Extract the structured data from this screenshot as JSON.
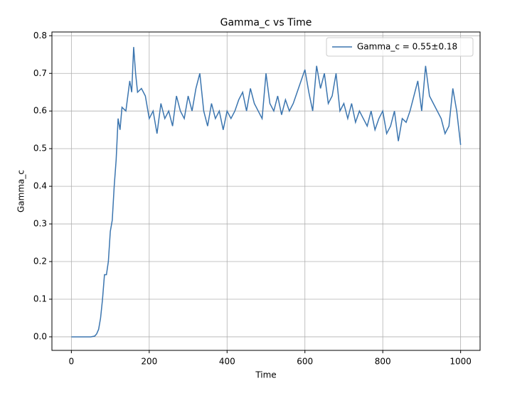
{
  "chart_data": {
    "type": "line",
    "title": "Gamma_c vs Time",
    "x_label": "Time",
    "y_label": "Gamma_c",
    "x": [
      0,
      10,
      20,
      30,
      40,
      50,
      60,
      65,
      70,
      75,
      80,
      85,
      90,
      95,
      100,
      105,
      110,
      115,
      120,
      125,
      130,
      140,
      150,
      155,
      160,
      165,
      170,
      180,
      190,
      200,
      210,
      220,
      230,
      240,
      250,
      260,
      270,
      280,
      290,
      300,
      310,
      320,
      330,
      340,
      350,
      360,
      370,
      380,
      390,
      400,
      410,
      420,
      430,
      440,
      450,
      460,
      470,
      480,
      490,
      500,
      510,
      520,
      530,
      540,
      550,
      560,
      570,
      580,
      590,
      600,
      610,
      620,
      630,
      640,
      650,
      660,
      670,
      680,
      690,
      700,
      710,
      720,
      730,
      740,
      750,
      760,
      770,
      780,
      790,
      800,
      810,
      820,
      830,
      840,
      850,
      860,
      870,
      880,
      890,
      900,
      910,
      920,
      930,
      940,
      950,
      960,
      970,
      980,
      990,
      1000
    ],
    "series": [
      {
        "name": "Gamma_c = 0.55±0.18",
        "color": "#3b75af",
        "values": [
          0,
          0,
          0,
          0,
          0,
          0,
          0.002,
          0.008,
          0.02,
          0.05,
          0.1,
          0.165,
          0.165,
          0.2,
          0.28,
          0.31,
          0.4,
          0.47,
          0.58,
          0.55,
          0.61,
          0.6,
          0.68,
          0.65,
          0.77,
          0.7,
          0.65,
          0.66,
          0.64,
          0.58,
          0.6,
          0.54,
          0.62,
          0.58,
          0.6,
          0.56,
          0.64,
          0.6,
          0.58,
          0.64,
          0.6,
          0.66,
          0.7,
          0.6,
          0.56,
          0.62,
          0.58,
          0.6,
          0.55,
          0.6,
          0.58,
          0.6,
          0.63,
          0.65,
          0.6,
          0.66,
          0.62,
          0.6,
          0.58,
          0.7,
          0.62,
          0.6,
          0.64,
          0.59,
          0.63,
          0.6,
          0.62,
          0.65,
          0.68,
          0.71,
          0.65,
          0.6,
          0.72,
          0.66,
          0.7,
          0.62,
          0.64,
          0.7,
          0.6,
          0.62,
          0.58,
          0.62,
          0.57,
          0.6,
          0.58,
          0.56,
          0.6,
          0.55,
          0.58,
          0.6,
          0.54,
          0.56,
          0.6,
          0.52,
          0.58,
          0.57,
          0.6,
          0.64,
          0.68,
          0.6,
          0.72,
          0.64,
          0.62,
          0.6,
          0.58,
          0.54,
          0.56,
          0.66,
          0.6,
          0.51
        ]
      }
    ],
    "xlim": [
      -50,
      1050
    ],
    "xticks": [
      0,
      200,
      400,
      600,
      800,
      1000
    ],
    "ylim": [
      -0.036,
      0.81
    ],
    "yticks": [
      {
        "value": 0,
        "label": "0.0"
      },
      0.1,
      0.2,
      0.3,
      0.4,
      0.5,
      0.6,
      0.7,
      0.8
    ],
    "grid": true,
    "legend": "upper right"
  }
}
